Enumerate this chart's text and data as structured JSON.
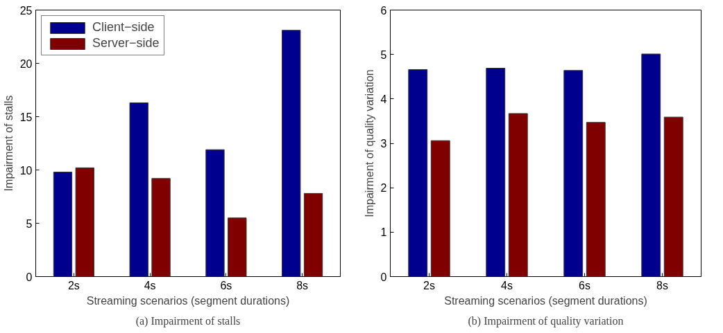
{
  "chart_data": [
    {
      "type": "bar",
      "title": "(a) Impairment of stalls",
      "xlabel": "Streaming scenarios (segment durations)",
      "ylabel": "Impairment of stalls",
      "categories": [
        "2s",
        "4s",
        "6s",
        "8s"
      ],
      "ylim": [
        0,
        25
      ],
      "yticks": [
        0,
        5,
        10,
        15,
        20,
        25
      ],
      "grid": false,
      "legend": "top left",
      "series": [
        {
          "name": "Client−side",
          "color": "#00008f",
          "values": [
            9.8,
            16.3,
            11.9,
            23.1
          ]
        },
        {
          "name": "Server−side",
          "color": "#800000",
          "values": [
            10.2,
            9.2,
            5.5,
            7.8
          ]
        }
      ]
    },
    {
      "type": "bar",
      "title": "(b) Impairment of quality variation",
      "xlabel": "Streaming scenarios (segment durations)",
      "ylabel": "Impairment of quality variation",
      "categories": [
        "2s",
        "4s",
        "6s",
        "8s"
      ],
      "ylim": [
        0,
        6
      ],
      "yticks": [
        0,
        1,
        2,
        3,
        4,
        5,
        6
      ],
      "grid": false,
      "series": [
        {
          "color": "#00008f",
          "values": [
            4.66,
            4.69,
            4.64,
            5.01
          ]
        },
        {
          "color": "#800000",
          "values": [
            3.06,
            3.67,
            3.47,
            3.59
          ]
        }
      ]
    }
  ]
}
